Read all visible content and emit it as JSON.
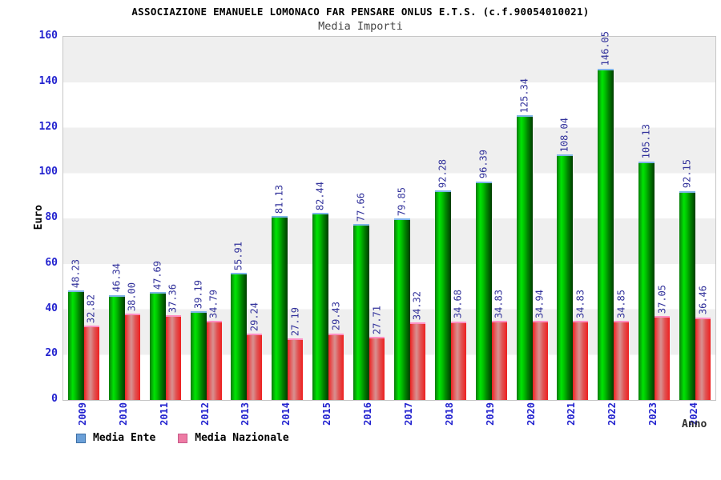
{
  "header": {
    "title": "ASSOCIAZIONE EMANUELE LOMONACO FAR PENSARE ONLUS E.T.S. (c.f.90054010021)",
    "subtitle": "Media Importi"
  },
  "chart_data": {
    "type": "bar",
    "title": "Media Importi",
    "xlabel": "Anno",
    "ylabel": "Euro",
    "ylim": [
      0,
      160
    ],
    "ytick_step": 20,
    "yticks": [
      0,
      20,
      40,
      60,
      80,
      100,
      120,
      140,
      160
    ],
    "grid": "alternating horizontal bands, gray band tops at 160/120/80/40",
    "legend_position": "bottom-left",
    "categories": [
      "2009",
      "2010",
      "2011",
      "2012",
      "2013",
      "2014",
      "2015",
      "2016",
      "2017",
      "2018",
      "2019",
      "2020",
      "2021",
      "2022",
      "2023",
      "2024"
    ],
    "series": [
      {
        "name": "Media Ente",
        "values": [
          48.23,
          46.34,
          47.69,
          39.19,
          55.91,
          81.13,
          82.44,
          77.66,
          79.85,
          92.28,
          96.39,
          125.34,
          108.04,
          146.05,
          105.13,
          92.15
        ],
        "value_labels": [
          "48.23",
          "46.34",
          "47.69",
          "39.19",
          "55.91",
          "81.13",
          "82.44",
          "77.66",
          "79.85",
          "92.28",
          "96.39",
          "125.34",
          "108.04",
          "146.05",
          "105.13",
          "92.15"
        ]
      },
      {
        "name": "Media Nazionale",
        "values": [
          32.82,
          38.0,
          37.36,
          34.79,
          29.24,
          27.19,
          29.43,
          27.71,
          34.32,
          34.68,
          34.83,
          34.94,
          34.83,
          34.85,
          37.05,
          36.46
        ],
        "value_labels": [
          "32.82",
          "38.00",
          "37.36",
          "34.79",
          "29.24",
          "27.19",
          "29.43",
          "27.71",
          "34.32",
          "34.68",
          "34.83",
          "34.94",
          "34.83",
          "34.85",
          "37.05",
          "36.46"
        ]
      }
    ]
  },
  "colors": {
    "tick_label": "#2323cf",
    "value_label": "#32329b",
    "band_gray": "#efefef",
    "plot_border": "#c6c6c6",
    "bar1_gradient": "linear-gradient(to right, #0a7a0a 0%, #00e404 28%, #00c300 45%, #008500 68%, #003c00 100%)",
    "bar1_cap": "#7fb5e8",
    "bar2_gradient": "linear-gradient(to right, #ee2222 0%, #e16969 25%, #d89191 42%, #e05353 68%, #ee2020 100%)",
    "bar2_cap": "#ff8fc2",
    "legend1_fill": "#6ba0d8",
    "legend1_border": "#3b6ea5",
    "legend2_fill": "#ee7ba4",
    "legend2_border": "#c75b8b"
  },
  "layout_note": "16 year groups, green Media Ente bar left, red Media Nazionale bar right, rotated value labels above bars"
}
